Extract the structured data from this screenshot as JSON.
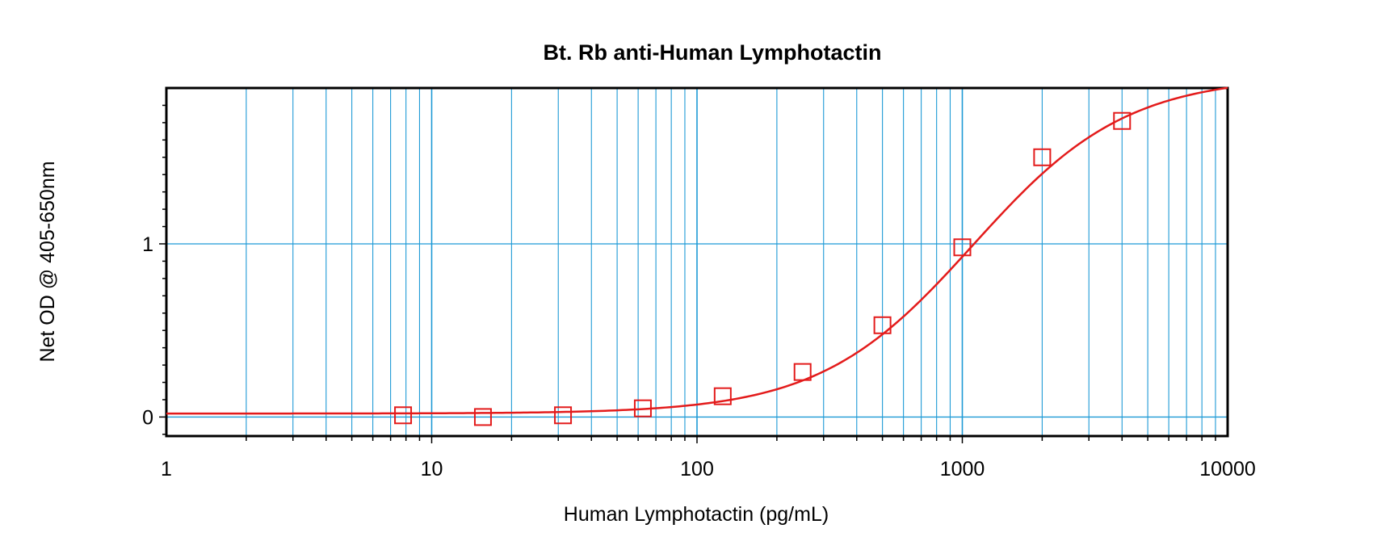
{
  "chart_data": {
    "type": "scatter",
    "title": "Bt. Rb anti-Human Lymphotactin",
    "xlabel": "Human Lymphotactin (pg/mL)",
    "ylabel": "Net OD @ 405-650nm",
    "x_scale": "log",
    "xlim": [
      1,
      10000
    ],
    "ylim": [
      -0.11,
      1.9
    ],
    "x_ticks": [
      {
        "value": 1,
        "label": "1"
      },
      {
        "value": 10,
        "label": "10"
      },
      {
        "value": 100,
        "label": "100"
      },
      {
        "value": 1000,
        "label": "1000"
      },
      {
        "value": 10000,
        "label": "10000"
      }
    ],
    "y_ticks": [
      {
        "value": 0,
        "label": "0"
      },
      {
        "value": 1,
        "label": "1"
      }
    ],
    "grid": true,
    "grid_color": "#1e9ad6",
    "series": [
      {
        "marker": "square",
        "color": "#e31b1b",
        "points": [
          {
            "x": 7.8,
            "y": 0.01
          },
          {
            "x": 15.6,
            "y": 0.0
          },
          {
            "x": 31.25,
            "y": 0.01
          },
          {
            "x": 62.5,
            "y": 0.05
          },
          {
            "x": 125,
            "y": 0.12
          },
          {
            "x": 250,
            "y": 0.26
          },
          {
            "x": 500,
            "y": 0.53
          },
          {
            "x": 1000,
            "y": 0.98
          },
          {
            "x": 2000,
            "y": 1.5
          },
          {
            "x": 4000,
            "y": 1.71
          }
        ]
      }
    ],
    "fit_curve": {
      "color": "#e31b1b",
      "model": "4PL",
      "bottom": 0.02,
      "top": 1.97,
      "ec50": 1100,
      "hill": 1.5
    }
  }
}
